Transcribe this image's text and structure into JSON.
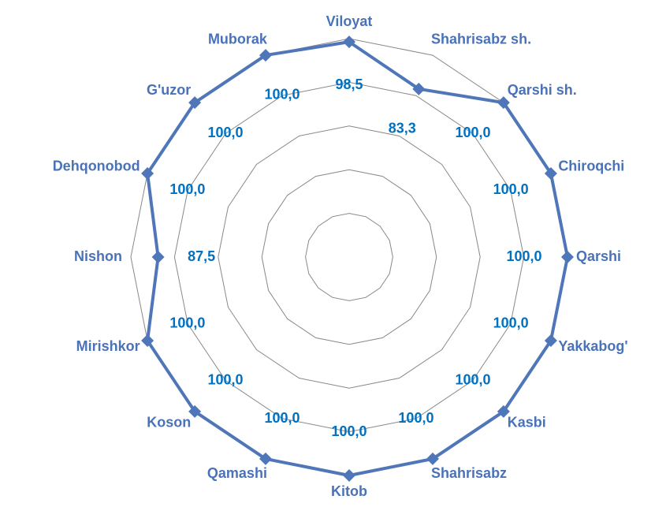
{
  "chart_data": {
    "type": "radar",
    "categories": [
      "Viloyat",
      "Shahrisabz sh.",
      "Qarshi sh.",
      "Chiroqchi",
      "Qarshi",
      "Yakkabog'",
      "Kasbi",
      "Shahrisabz",
      "Kitob",
      "Qamashi",
      "Koson",
      "Mirishkor",
      "Nishon",
      "Dehqonobod",
      "G'uzor",
      "Muborak"
    ],
    "values": [
      98.5,
      83.3,
      100,
      100,
      100,
      100,
      100,
      100,
      100,
      100,
      100,
      100,
      87.5,
      100,
      100,
      100
    ],
    "value_labels": [
      "98,5",
      "83,3",
      "100,0",
      "100,0",
      "100,0",
      "100,0",
      "100,0",
      "100,0",
      "100,0",
      "100,0",
      "100,0",
      "100,0",
      "87,5",
      "100,0",
      "100,0",
      "100,0"
    ],
    "color": "#4f76b9",
    "label_color": "#0070c0",
    "category_color": "#4a72b8",
    "ylim": [
      0,
      100
    ],
    "yticks": [
      20,
      40,
      60,
      80,
      100
    ],
    "grid": true,
    "show_tick_labels": false
  }
}
